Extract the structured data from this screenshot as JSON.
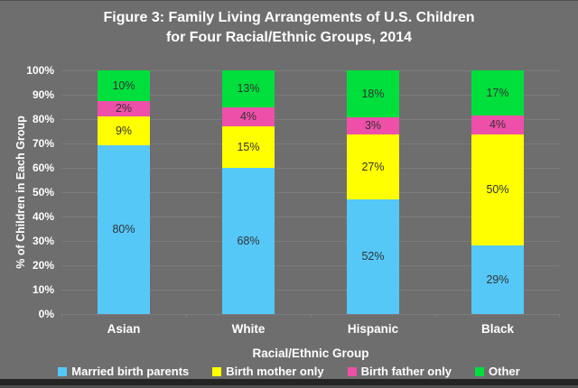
{
  "title": {
    "line1": "Figure 3: Family Living Arrangements of U.S. Children",
    "line2": "for Four Racial/Ethnic Groups, 2014"
  },
  "colors": {
    "background": "#6E6E6E",
    "gridline": "#7C7C7C",
    "axis_text": "#FFFFFF",
    "segment_label_text": "#333333"
  },
  "chart_data": {
    "type": "bar",
    "stacked": true,
    "title": "Figure 3: Family Living Arrangements of U.S. Children for Four Racial/Ethnic Groups, 2014",
    "categories": [
      "Asian",
      "White",
      "Hispanic",
      "Black"
    ],
    "series": [
      {
        "name": "Married birth parents",
        "color": "#55C8F8",
        "values": [
          80,
          68,
          52,
          29
        ]
      },
      {
        "name": "Birth mother only",
        "color": "#FFFF00",
        "values": [
          9,
          15,
          27,
          50
        ]
      },
      {
        "name": "Birth father only",
        "color": "#EE4FA8",
        "values": [
          2,
          4,
          3,
          4
        ]
      },
      {
        "name": "Other",
        "color": "#00DF3C",
        "values": [
          10,
          13,
          18,
          17
        ]
      }
    ],
    "data_label_suffix": "%",
    "xlabel": "Racial/Ethnic Group",
    "ylabel": "% of Children in Each Group",
    "ylim": [
      0,
      100
    ],
    "ytick_step": 10,
    "yticks_top_to_bottom": [
      "100%",
      "90%",
      "80%",
      "70%",
      "60%",
      "50%",
      "40%",
      "30%",
      "20%",
      "10%",
      "0%"
    ],
    "grid": true,
    "legend_position": "bottom"
  }
}
